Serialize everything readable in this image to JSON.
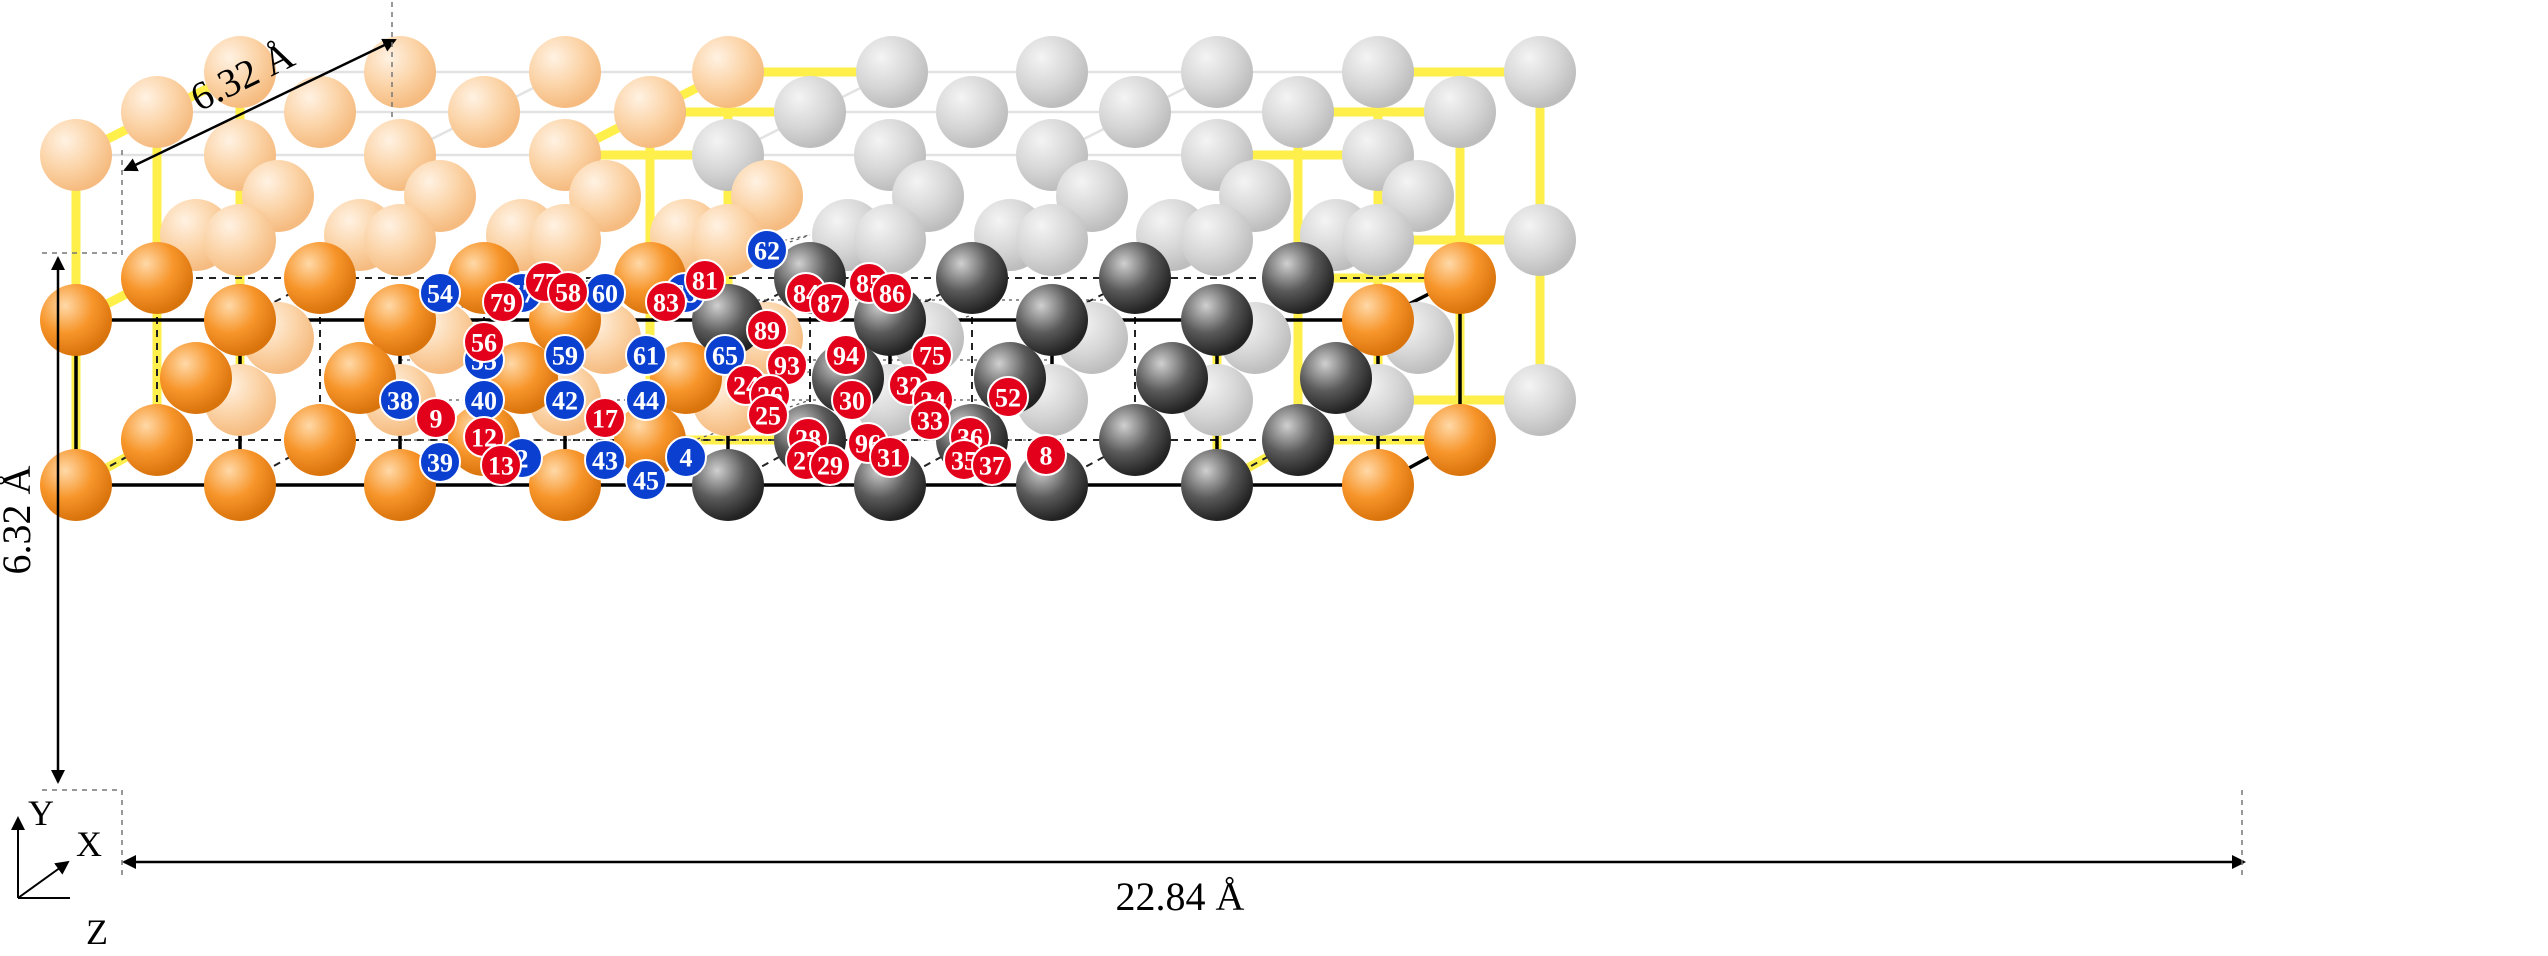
{
  "dimensions": {
    "width_label": "6.32 Å",
    "height_label": "6.32 Å",
    "length_label": "22.84 Å"
  },
  "axes": {
    "y": "Y",
    "x": "X",
    "z": "Z"
  },
  "colors": {
    "orange_atom": "#f79a2e",
    "orange_faded": "#fbd1a3",
    "gray_atom": "#4a4a4a",
    "gray_faded": "#d2d2d2",
    "red_site": "#e3001b",
    "blue_site": "#0a3fd0",
    "highlight_bond": "#ffee3a"
  },
  "sites": {
    "blue": [
      "54",
      "57",
      "60",
      "63",
      "62",
      "55",
      "59",
      "61",
      "65",
      "38",
      "40",
      "42",
      "44",
      "39",
      "2",
      "43",
      "4",
      "45"
    ],
    "red": [
      "77",
      "58",
      "81",
      "79",
      "83",
      "84",
      "87",
      "85",
      "86",
      "56",
      "89",
      "93",
      "94",
      "75",
      "9",
      "12",
      "17",
      "24",
      "26",
      "25",
      "30",
      "32",
      "34",
      "33",
      "52",
      "13",
      "28",
      "27",
      "29",
      "96",
      "31",
      "36",
      "35",
      "37",
      "8"
    ]
  }
}
